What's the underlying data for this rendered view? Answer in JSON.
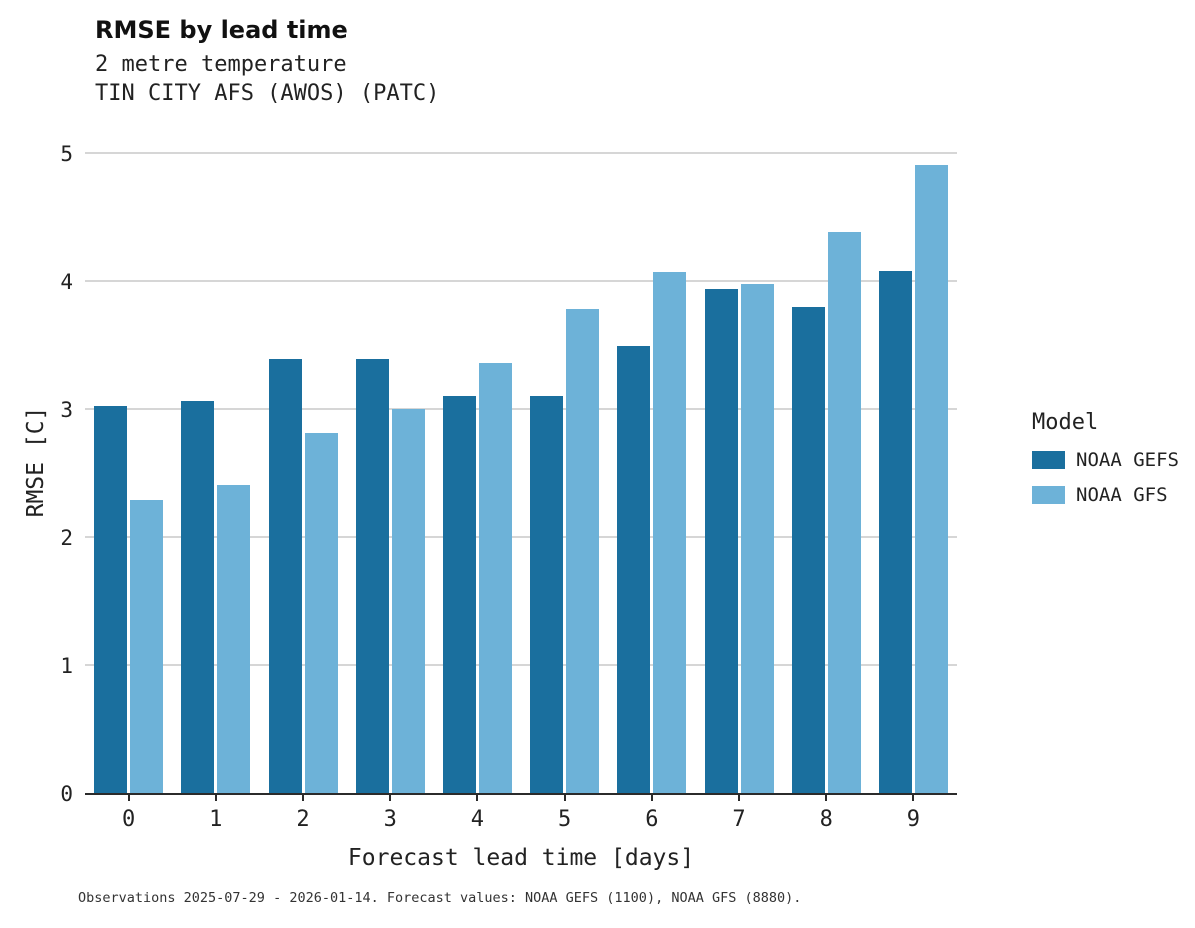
{
  "chart_data": {
    "type": "bar",
    "title": "RMSE by lead time",
    "subtitle_line1": "2 metre temperature",
    "subtitle_line2": "TIN CITY AFS (AWOS) (PATC)",
    "xlabel": "Forecast lead time [days]",
    "ylabel": "RMSE [C]",
    "categories": [
      "0",
      "1",
      "2",
      "3",
      "4",
      "5",
      "6",
      "7",
      "8",
      "9"
    ],
    "series": [
      {
        "name": "NOAA GEFS",
        "color": "#1a6f9e",
        "values": [
          3.02,
          3.06,
          3.39,
          3.39,
          3.1,
          3.1,
          3.49,
          3.94,
          3.8,
          4.08
        ]
      },
      {
        "name": "NOAA GFS",
        "color": "#6db2d8",
        "values": [
          2.29,
          2.41,
          2.81,
          3.0,
          3.36,
          3.78,
          4.07,
          3.98,
          4.38,
          4.91
        ]
      }
    ],
    "ylim": [
      0,
      5
    ],
    "yticks": [
      0,
      1,
      2,
      3,
      4,
      5
    ],
    "grid": "horizontal",
    "legend_position": "right",
    "legend_title": "Model",
    "caption": "Observations 2025-07-29 - 2026-01-14. Forecast values: NOAA GEFS (1100), NOAA GFS (8880)."
  }
}
